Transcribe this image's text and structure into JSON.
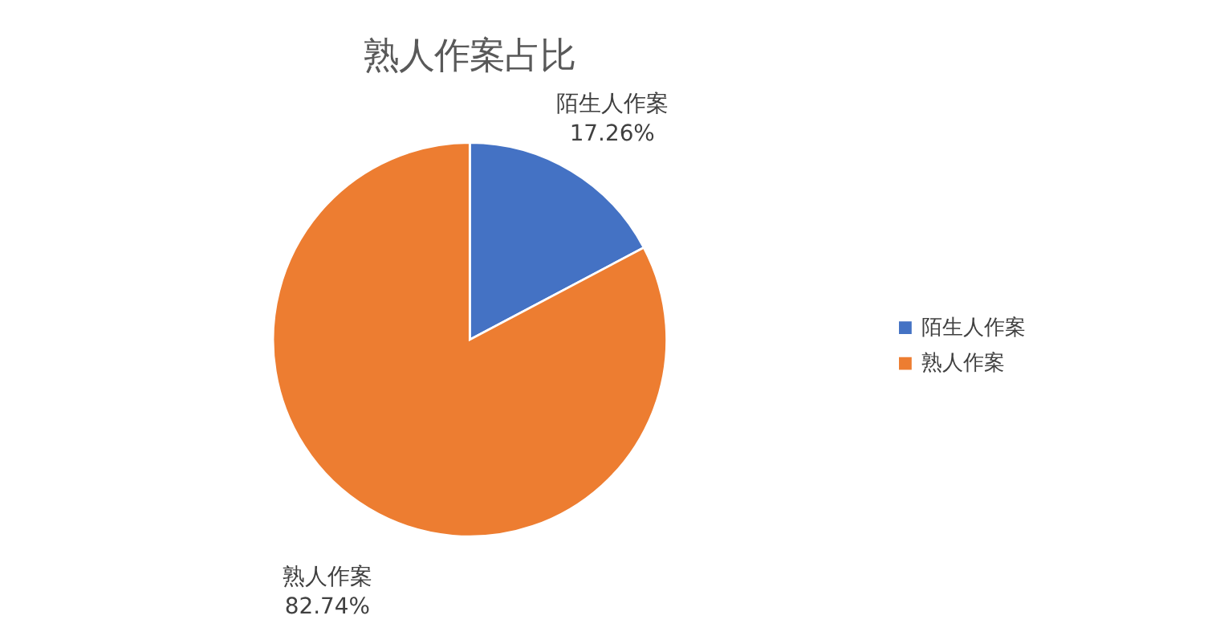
{
  "chart_data": {
    "type": "pie",
    "title": "熟人作案占比",
    "categories": [
      "陌生人作案",
      "熟人作案"
    ],
    "values": [
      17.26,
      82.74
    ],
    "colors": [
      "#4472c4",
      "#ed7d31"
    ],
    "value_labels": [
      "17.26%",
      "82.74%"
    ],
    "legend": "right"
  }
}
